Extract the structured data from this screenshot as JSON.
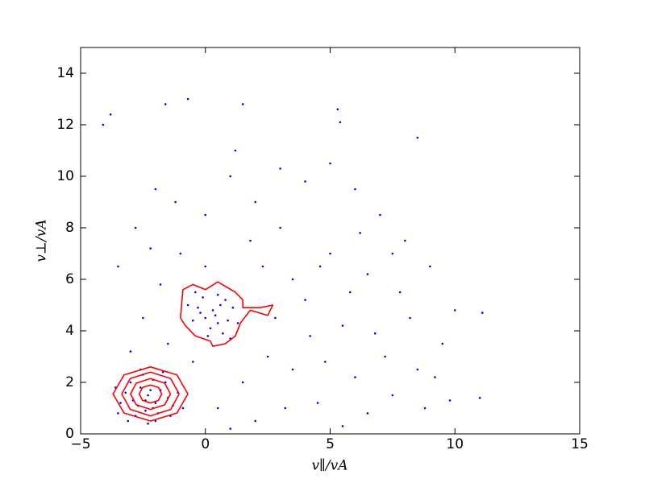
{
  "chart_data": {
    "type": "scatter",
    "x_label": "v∥/vA",
    "y_label": "v⊥/vA",
    "xlim": [
      -5,
      15
    ],
    "ylim": [
      0,
      15
    ],
    "xticks": [
      {
        "value": -5,
        "label": "−5"
      },
      0,
      5,
      10,
      15
    ],
    "yticks": [
      0,
      2,
      4,
      6,
      8,
      10,
      12,
      14
    ],
    "series": [
      {
        "color": "#0000ff",
        "x": [
          -2.3,
          -2.0,
          -2.6,
          -1.8,
          -2.9,
          -2.4,
          -2.1,
          -1.5,
          -3.2,
          -2.7,
          -1.9,
          -2.5,
          -1.3,
          -3.0,
          -2.2,
          -2.8,
          -1.6,
          -3.4,
          -2.0,
          -1.1,
          -2.6,
          -3.5,
          -1.4,
          -2.3,
          -3.1,
          -1.7,
          -0.9,
          -3.6,
          -2.4,
          -2.1,
          0.3,
          0.0,
          0.6,
          -0.3,
          0.9,
          0.2,
          -0.5,
          0.5,
          1.1,
          -0.1,
          0.7,
          -0.7,
          0.4,
          1.3,
          0.1,
          -0.2,
          0.8,
          0.5,
          -0.4,
          1.0,
          -3.5,
          -2.8,
          -2.0,
          -1.0,
          0.0,
          1.0,
          2.0,
          3.0,
          4.0,
          5.0,
          6.0,
          7.0,
          8.0,
          9.0,
          10.0,
          9.5,
          8.5,
          7.5,
          6.5,
          5.5,
          4.5,
          3.5,
          2.5,
          1.5,
          0.5,
          -0.5,
          -1.5,
          -2.5,
          -3.0,
          -1.8,
          0.0,
          1.8,
          3.5,
          5.0,
          6.5,
          7.8,
          2.8,
          4.2,
          5.5,
          6.8,
          4.8,
          6.0,
          7.2,
          8.8,
          9.8,
          3.2,
          2.0,
          1.0,
          4.0,
          5.8,
          3.0,
          1.2,
          -1.2,
          -2.2,
          2.3,
          6.2,
          7.5,
          8.2,
          4.6,
          9.2,
          -4.1,
          -3.8,
          -1.6,
          -0.7,
          1.5,
          5.3,
          5.4,
          8.5,
          11.1,
          11.0
        ],
        "y": [
          1.5,
          1.2,
          1.8,
          1.7,
          1.3,
          0.9,
          2.1,
          1.4,
          1.6,
          1.1,
          0.8,
          2.3,
          1.1,
          2.0,
          1.7,
          0.7,
          2.0,
          1.2,
          0.5,
          1.6,
          2.5,
          0.8,
          0.7,
          0.4,
          0.5,
          2.4,
          1.0,
          1.8,
          1.3,
          1.0,
          4.8,
          4.5,
          5.0,
          4.9,
          4.4,
          4.1,
          4.4,
          5.4,
          4.9,
          5.3,
          3.9,
          5.0,
          4.6,
          4.3,
          3.8,
          4.7,
          5.2,
          4.3,
          5.5,
          3.7,
          6.5,
          8.0,
          9.5,
          7.0,
          8.5,
          10.0,
          9.0,
          8.0,
          9.8,
          10.5,
          9.5,
          8.5,
          7.5,
          6.5,
          4.8,
          3.5,
          2.5,
          1.5,
          0.8,
          0.3,
          1.2,
          2.5,
          3.0,
          2.0,
          1.0,
          2.8,
          3.5,
          4.5,
          3.2,
          5.8,
          6.5,
          7.5,
          6.0,
          7.0,
          6.2,
          5.5,
          4.5,
          3.8,
          4.2,
          3.9,
          2.8,
          2.2,
          3.0,
          1.0,
          1.3,
          1.0,
          0.5,
          0.2,
          5.2,
          5.5,
          10.3,
          11.0,
          9.0,
          7.2,
          6.5,
          7.8,
          7.0,
          4.5,
          6.5,
          2.2,
          12.0,
          12.4,
          12.8,
          13.0,
          12.8,
          12.6,
          12.1,
          11.5,
          4.7,
          1.4
        ]
      }
    ],
    "contours": [
      {
        "color": "#ff0000",
        "x": [
          -0.7,
          -1.14,
          -2.2,
          -3.26,
          -3.7,
          -3.26,
          -2.2,
          -1.14,
          -0.7
        ],
        "y": [
          1.55,
          2.29,
          2.6,
          2.29,
          1.55,
          0.81,
          0.5,
          0.81,
          1.55
        ]
      },
      {
        "color": "#ff0000",
        "x": [
          -1.05,
          -1.39,
          -2.2,
          -3.01,
          -3.35,
          -3.01,
          -2.2,
          -1.39,
          -1.05
        ],
        "y": [
          1.55,
          2.15,
          2.4,
          2.15,
          1.55,
          0.95,
          0.7,
          0.95,
          1.55
        ]
      },
      {
        "color": "#ff0000",
        "x": [
          -1.4,
          -1.63,
          -2.2,
          -2.77,
          -3.0,
          -2.77,
          -2.2,
          -1.63,
          -1.4
        ],
        "y": [
          1.55,
          1.97,
          2.15,
          1.97,
          1.55,
          1.13,
          0.95,
          1.13,
          1.55
        ]
      },
      {
        "color": "#ff0000",
        "x": [
          -1.75,
          -1.88,
          -2.2,
          -2.52,
          -2.65,
          -2.52,
          -2.2,
          -1.88,
          -1.75
        ],
        "y": [
          1.55,
          1.8,
          1.9,
          1.8,
          1.55,
          1.3,
          1.2,
          1.3,
          1.55
        ]
      },
      {
        "color": "#ff0000",
        "x": [
          -1.0,
          -0.9,
          -0.5,
          0.0,
          0.5,
          1.2,
          1.5,
          1.5,
          2.2,
          2.7,
          2.5,
          1.8,
          1.4,
          1.2,
          0.8,
          0.3,
          0.2,
          -0.4,
          -0.8,
          -1.0
        ],
        "y": [
          4.5,
          5.6,
          5.8,
          5.6,
          5.9,
          5.5,
          5.2,
          4.9,
          4.9,
          5.0,
          4.6,
          4.8,
          4.3,
          3.8,
          3.5,
          3.4,
          3.6,
          3.8,
          4.2,
          4.5
        ]
      }
    ]
  }
}
